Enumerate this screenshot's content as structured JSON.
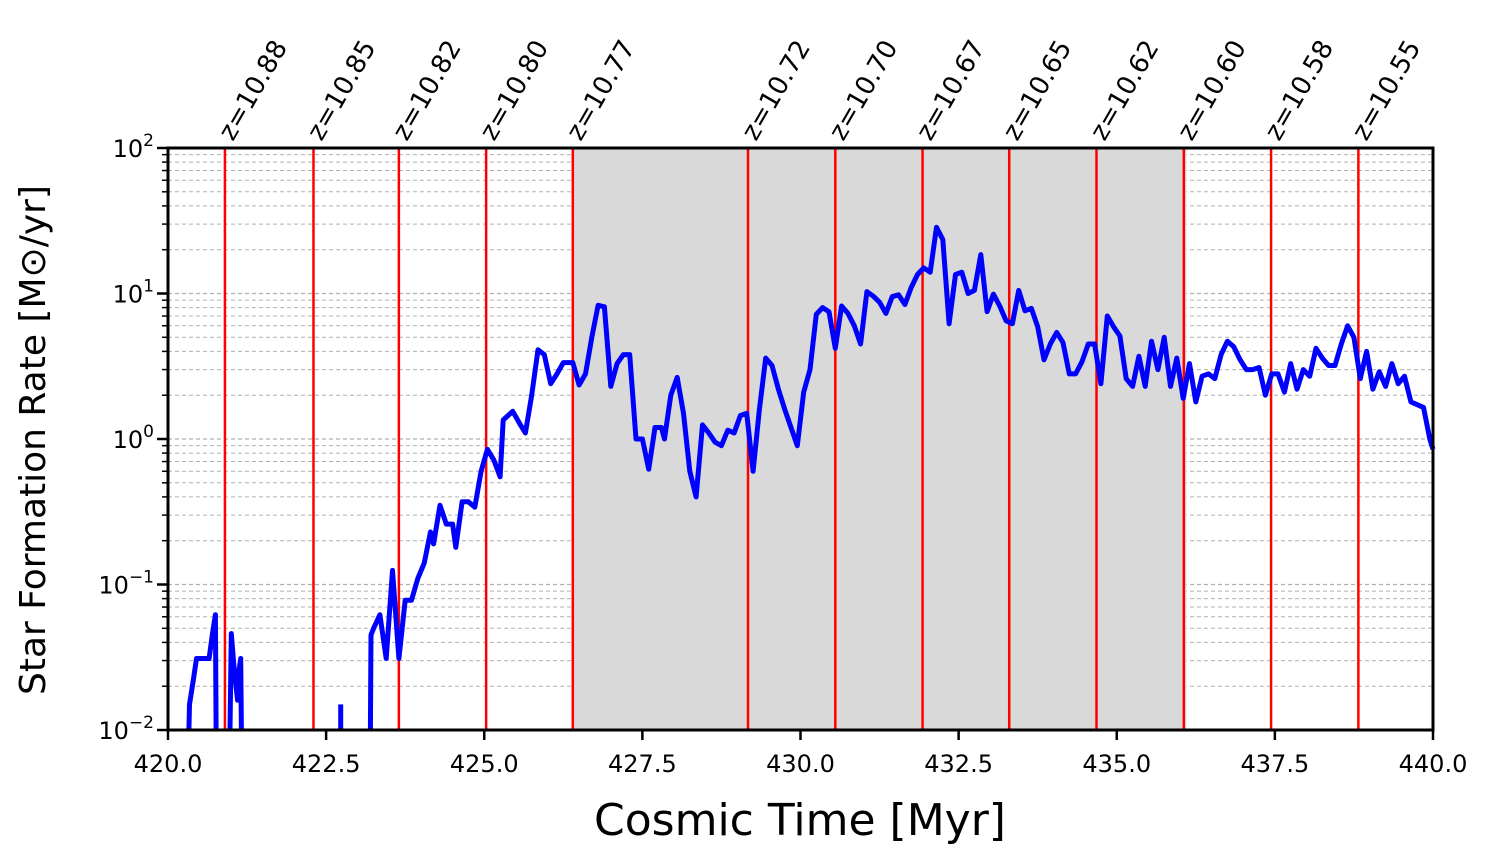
{
  "chart_data": {
    "type": "line",
    "xlabel": "Cosmic Time [Myr]",
    "ylabel": "Star Formation Rate [M⊙/yr]",
    "xlim": [
      420.0,
      440.0
    ],
    "ylim": [
      0.01,
      100
    ],
    "yscale": "log",
    "grid": "y-minor dashed",
    "x_ticks": [
      "420.0",
      "422.5",
      "425.0",
      "427.5",
      "430.0",
      "432.5",
      "435.0",
      "437.5",
      "440.0"
    ],
    "x_tick_values": [
      420.0,
      422.5,
      425.0,
      427.5,
      430.0,
      432.5,
      435.0,
      437.5,
      440.0
    ],
    "y_ticks": [
      {
        "value": 0.01,
        "base": "10",
        "exp": "−2"
      },
      {
        "value": 0.1,
        "base": "10",
        "exp": "−1"
      },
      {
        "value": 1,
        "base": "10",
        "exp": "0"
      },
      {
        "value": 10,
        "base": "10",
        "exp": "1"
      },
      {
        "value": 100,
        "base": "10",
        "exp": "2"
      }
    ],
    "shaded_region": {
      "x_start": 426.4,
      "x_end": 436.1,
      "color": "#d9d9d9"
    },
    "redshift_markers": [
      {
        "x": 420.9,
        "label": "z=10.88"
      },
      {
        "x": 422.3,
        "label": "z=10.85"
      },
      {
        "x": 423.65,
        "label": "z=10.82"
      },
      {
        "x": 425.03,
        "label": "z=10.80"
      },
      {
        "x": 426.4,
        "label": "z=10.77"
      },
      {
        "x": 429.17,
        "label": "z=10.72"
      },
      {
        "x": 430.55,
        "label": "z=10.70"
      },
      {
        "x": 431.93,
        "label": "z=10.67"
      },
      {
        "x": 433.3,
        "label": "z=10.65"
      },
      {
        "x": 434.68,
        "label": "z=10.62"
      },
      {
        "x": 436.06,
        "label": "z=10.60"
      },
      {
        "x": 437.44,
        "label": "z=10.58"
      },
      {
        "x": 438.82,
        "label": "z=10.55"
      }
    ],
    "marker_color": "#ff0000",
    "series": [
      {
        "color": "#0000ff",
        "segments": [
          [
            [
              420.33,
              0.01
            ],
            [
              420.34,
              0.015
            ],
            [
              420.4,
              0.022
            ],
            [
              420.45,
              0.031
            ],
            [
              420.6,
              0.031
            ],
            [
              420.65,
              0.031
            ],
            [
              420.7,
              0.045
            ],
            [
              420.75,
              0.062
            ],
            [
              420.76,
              0.01
            ]
          ],
          [
            [
              420.98,
              0.01
            ],
            [
              421.0,
              0.046
            ],
            [
              421.05,
              0.025
            ],
            [
              421.1,
              0.016
            ],
            [
              421.12,
              0.025
            ],
            [
              421.15,
              0.031
            ],
            [
              421.16,
              0.01
            ]
          ],
          [
            [
              422.73,
              0.01
            ],
            [
              422.73,
              0.015
            ]
          ],
          [
            [
              423.2,
              0.01
            ],
            [
              423.21,
              0.045
            ],
            [
              423.25,
              0.05
            ],
            [
              423.35,
              0.062
            ],
            [
              423.45,
              0.031
            ],
            [
              423.55,
              0.125
            ],
            [
              423.65,
              0.031
            ],
            [
              423.75,
              0.078
            ],
            [
              423.85,
              0.078
            ],
            [
              423.95,
              0.11
            ],
            [
              424.05,
              0.14
            ],
            [
              424.15,
              0.23
            ],
            [
              424.2,
              0.19
            ],
            [
              424.3,
              0.35
            ],
            [
              424.4,
              0.26
            ],
            [
              424.5,
              0.26
            ],
            [
              424.55,
              0.18
            ],
            [
              424.65,
              0.37
            ],
            [
              424.75,
              0.37
            ],
            [
              424.85,
              0.34
            ],
            [
              424.95,
              0.6
            ],
            [
              425.05,
              0.85
            ],
            [
              425.15,
              0.72
            ],
            [
              425.25,
              0.55
            ],
            [
              425.3,
              1.35
            ],
            [
              425.45,
              1.55
            ],
            [
              425.55,
              1.3
            ],
            [
              425.65,
              1.1
            ],
            [
              425.75,
              2.0
            ],
            [
              425.85,
              4.1
            ],
            [
              425.95,
              3.8
            ],
            [
              426.05,
              2.4
            ],
            [
              426.15,
              2.8
            ],
            [
              426.25,
              3.35
            ],
            [
              426.4,
              3.35
            ],
            [
              426.5,
              2.35
            ],
            [
              426.6,
              2.8
            ],
            [
              426.7,
              5.0
            ],
            [
              426.8,
              8.3
            ],
            [
              426.9,
              8.1
            ],
            [
              427.0,
              2.3
            ],
            [
              427.1,
              3.3
            ],
            [
              427.2,
              3.8
            ],
            [
              427.3,
              3.8
            ],
            [
              427.4,
              1.0
            ],
            [
              427.5,
              1.0
            ],
            [
              427.6,
              0.62
            ],
            [
              427.7,
              1.2
            ],
            [
              427.8,
              1.2
            ],
            [
              427.85,
              1.0
            ],
            [
              427.95,
              2.0
            ],
            [
              428.05,
              2.65
            ],
            [
              428.15,
              1.5
            ],
            [
              428.25,
              0.6
            ],
            [
              428.35,
              0.4
            ],
            [
              428.45,
              1.25
            ],
            [
              428.55,
              1.1
            ],
            [
              428.65,
              0.95
            ],
            [
              428.75,
              0.9
            ],
            [
              428.85,
              1.15
            ],
            [
              428.95,
              1.1
            ],
            [
              429.05,
              1.45
            ],
            [
              429.15,
              1.5
            ],
            [
              429.25,
              0.6
            ],
            [
              429.35,
              1.6
            ],
            [
              429.45,
              3.6
            ],
            [
              429.55,
              3.2
            ],
            [
              429.65,
              2.2
            ],
            [
              429.75,
              1.6
            ],
            [
              429.85,
              1.2
            ],
            [
              429.95,
              0.9
            ],
            [
              430.05,
              2.1
            ],
            [
              430.15,
              3.0
            ],
            [
              430.25,
              7.2
            ],
            [
              430.35,
              8.0
            ],
            [
              430.45,
              7.5
            ],
            [
              430.55,
              4.2
            ],
            [
              430.65,
              8.2
            ],
            [
              430.75,
              7.3
            ],
            [
              430.85,
              6.0
            ],
            [
              430.95,
              4.5
            ],
            [
              431.05,
              10.3
            ],
            [
              431.15,
              9.6
            ],
            [
              431.25,
              8.7
            ],
            [
              431.35,
              7.3
            ],
            [
              431.45,
              9.5
            ],
            [
              431.55,
              9.8
            ],
            [
              431.65,
              8.4
            ],
            [
              431.75,
              11.0
            ],
            [
              431.85,
              13.5
            ],
            [
              431.95,
              15.0
            ],
            [
              432.05,
              14.0
            ],
            [
              432.15,
              28.5
            ],
            [
              432.25,
              23.5
            ],
            [
              432.35,
              6.2
            ],
            [
              432.45,
              13.5
            ],
            [
              432.55,
              14.0
            ],
            [
              432.65,
              10.0
            ],
            [
              432.75,
              10.5
            ],
            [
              432.85,
              18.5
            ],
            [
              432.95,
              7.5
            ],
            [
              433.05,
              9.9
            ],
            [
              433.15,
              8.2
            ],
            [
              433.25,
              6.5
            ],
            [
              433.35,
              6.2
            ],
            [
              433.45,
              10.5
            ],
            [
              433.55,
              7.6
            ],
            [
              433.65,
              7.9
            ],
            [
              433.75,
              5.9
            ],
            [
              433.85,
              3.5
            ],
            [
              433.95,
              4.5
            ],
            [
              434.05,
              5.4
            ],
            [
              434.15,
              4.6
            ],
            [
              434.25,
              2.8
            ],
            [
              434.35,
              2.8
            ],
            [
              434.45,
              3.4
            ],
            [
              434.55,
              4.5
            ],
            [
              434.65,
              4.5
            ],
            [
              434.75,
              2.4
            ],
            [
              434.85,
              7.0
            ],
            [
              434.95,
              5.9
            ],
            [
              435.05,
              5.1
            ],
            [
              435.15,
              2.6
            ],
            [
              435.25,
              2.3
            ],
            [
              435.35,
              3.7
            ],
            [
              435.45,
              2.3
            ],
            [
              435.55,
              4.7
            ],
            [
              435.65,
              3.0
            ],
            [
              435.75,
              5.0
            ],
            [
              435.85,
              2.3
            ],
            [
              435.95,
              3.6
            ],
            [
              436.05,
              1.9
            ],
            [
              436.15,
              3.3
            ],
            [
              436.25,
              1.8
            ],
            [
              436.35,
              2.7
            ],
            [
              436.45,
              2.8
            ],
            [
              436.55,
              2.6
            ],
            [
              436.65,
              3.8
            ],
            [
              436.75,
              4.7
            ],
            [
              436.85,
              4.3
            ],
            [
              436.95,
              3.5
            ],
            [
              437.05,
              3.0
            ],
            [
              437.15,
              3.0
            ],
            [
              437.25,
              3.1
            ],
            [
              437.35,
              2.0
            ],
            [
              437.45,
              2.8
            ],
            [
              437.55,
              2.8
            ],
            [
              437.65,
              2.1
            ],
            [
              437.75,
              3.3
            ],
            [
              437.85,
              2.2
            ],
            [
              437.95,
              3.0
            ],
            [
              438.05,
              2.7
            ],
            [
              438.15,
              4.2
            ],
            [
              438.25,
              3.6
            ],
            [
              438.35,
              3.2
            ],
            [
              438.45,
              3.2
            ],
            [
              438.55,
              4.5
            ],
            [
              438.65,
              6.0
            ],
            [
              438.75,
              5.0
            ],
            [
              438.85,
              2.6
            ],
            [
              438.95,
              4.0
            ],
            [
              439.05,
              2.2
            ],
            [
              439.15,
              2.9
            ],
            [
              439.25,
              2.3
            ],
            [
              439.35,
              3.3
            ],
            [
              439.45,
              2.4
            ],
            [
              439.55,
              2.7
            ],
            [
              439.65,
              1.8
            ],
            [
              439.85,
              1.65
            ],
            [
              439.95,
              1.0
            ],
            [
              440.0,
              0.85
            ]
          ]
        ]
      }
    ]
  }
}
